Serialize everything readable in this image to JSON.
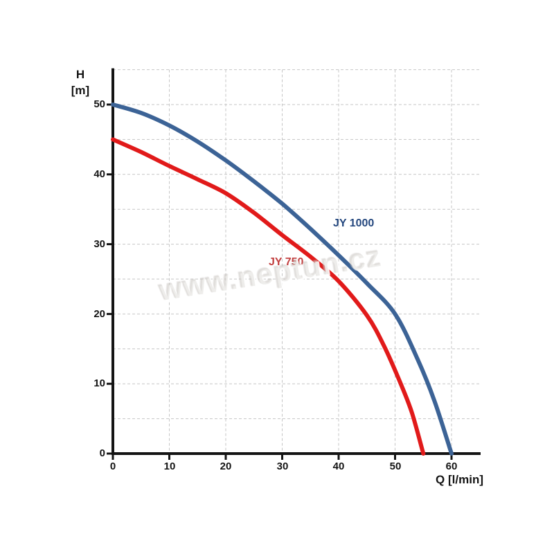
{
  "page": {
    "background": "#ffffff"
  },
  "watermark": {
    "text": "www.neptun.cz"
  },
  "chart_data": {
    "type": "line",
    "title": "",
    "xlabel": "Q [l/min]",
    "ylabel": "H [m]",
    "ylabel_lines": [
      "H",
      "[m]"
    ],
    "xlim": [
      0,
      65
    ],
    "ylim": [
      0,
      55
    ],
    "x_ticks": [
      0,
      10,
      20,
      30,
      40,
      50,
      60
    ],
    "y_ticks": [
      50,
      40,
      30,
      20,
      10,
      0
    ],
    "grid": {
      "x_step": 10,
      "y_step": 5,
      "style": "dashed",
      "color": "#c5c5c5",
      "on": true
    },
    "legend_position": "inline-curve-labels",
    "axis_color": "#141414",
    "series": [
      {
        "name": "JY 1000",
        "color": "#3C6396",
        "label_color": "#24477E",
        "points": [
          [
            0,
            50
          ],
          [
            5,
            48.8
          ],
          [
            10,
            47
          ],
          [
            15,
            44.7
          ],
          [
            20,
            42
          ],
          [
            25,
            39
          ],
          [
            30,
            35.8
          ],
          [
            35,
            32.2
          ],
          [
            40,
            28.4
          ],
          [
            45,
            24.4
          ],
          [
            50,
            20
          ],
          [
            54,
            13.5
          ],
          [
            57,
            7.5
          ],
          [
            60,
            0
          ]
        ]
      },
      {
        "name": "JY 750",
        "color": "#E11A1A",
        "label_color": "#C24040",
        "points": [
          [
            0,
            45
          ],
          [
            5,
            43.2
          ],
          [
            10,
            41.2
          ],
          [
            15,
            39.3
          ],
          [
            20,
            37.3
          ],
          [
            25,
            34.5
          ],
          [
            30,
            31.3
          ],
          [
            35,
            28.2
          ],
          [
            40,
            24.7
          ],
          [
            45,
            19.8
          ],
          [
            48,
            15.5
          ],
          [
            51,
            10
          ],
          [
            53,
            5.8
          ],
          [
            55,
            0
          ]
        ]
      }
    ]
  }
}
